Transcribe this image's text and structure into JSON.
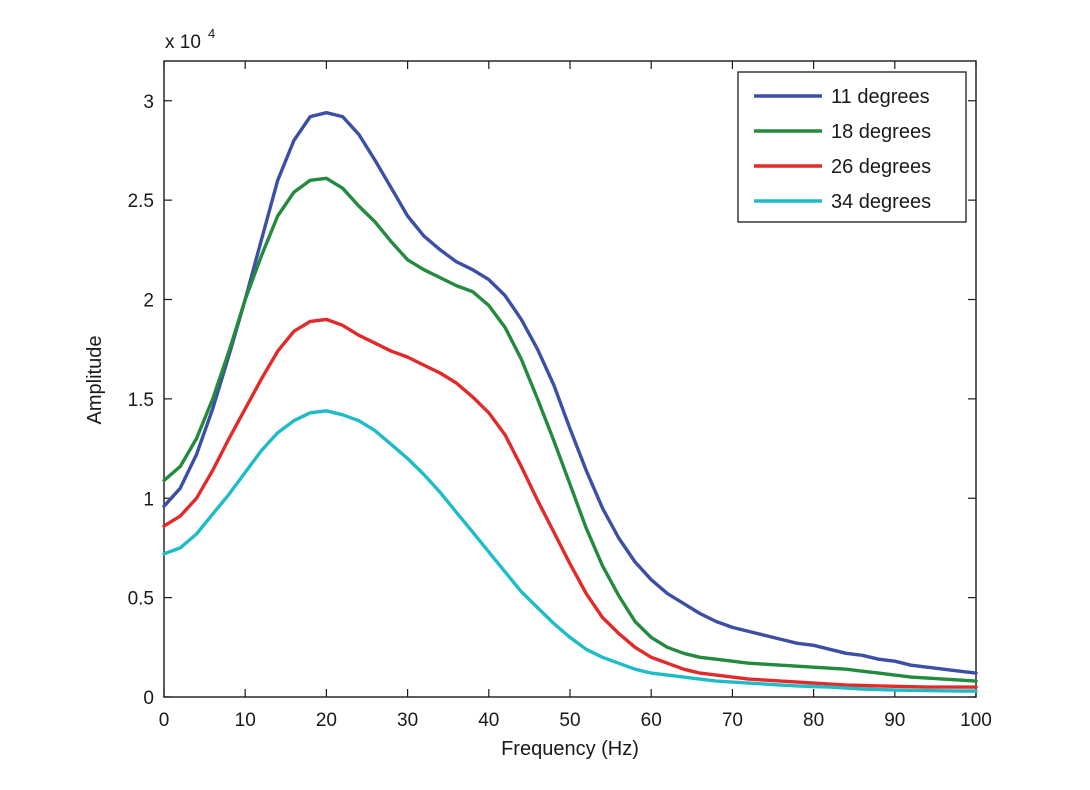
{
  "chart_data": {
    "type": "line",
    "title": "",
    "xlabel": "Frequency (Hz)",
    "ylabel": "Amplitude",
    "y_multiplier_label": "x 10",
    "y_multiplier_exponent": "4",
    "xlim": [
      0,
      100
    ],
    "ylim": [
      0,
      3.2
    ],
    "xticks": [
      0,
      10,
      20,
      30,
      40,
      50,
      60,
      70,
      80,
      90,
      100
    ],
    "yticks": [
      0,
      0.5,
      1,
      1.5,
      2,
      2.5,
      3
    ],
    "xtick_labels": [
      "0",
      "10",
      "20",
      "30",
      "40",
      "50",
      "60",
      "70",
      "80",
      "90",
      "100"
    ],
    "ytick_labels": [
      "0",
      "0.5",
      "1",
      "1.5",
      "2",
      "2.5",
      "3"
    ],
    "grid": false,
    "legend_position": "top-right",
    "x": [
      0,
      2,
      4,
      6,
      8,
      10,
      12,
      14,
      16,
      18,
      20,
      22,
      24,
      26,
      28,
      30,
      32,
      34,
      36,
      38,
      40,
      42,
      44,
      46,
      48,
      50,
      52,
      54,
      56,
      58,
      60,
      62,
      64,
      66,
      68,
      70,
      72,
      74,
      76,
      78,
      80,
      82,
      84,
      86,
      88,
      90,
      92,
      94,
      96,
      98,
      100
    ],
    "series": [
      {
        "name": "11 degrees",
        "color": "#3b4fa6",
        "values": [
          0.96,
          1.05,
          1.22,
          1.45,
          1.72,
          2.0,
          2.3,
          2.6,
          2.8,
          2.92,
          2.94,
          2.92,
          2.83,
          2.7,
          2.56,
          2.42,
          2.32,
          2.25,
          2.19,
          2.15,
          2.1,
          2.02,
          1.9,
          1.75,
          1.57,
          1.35,
          1.14,
          0.95,
          0.8,
          0.68,
          0.59,
          0.52,
          0.47,
          0.42,
          0.38,
          0.35,
          0.33,
          0.31,
          0.29,
          0.27,
          0.26,
          0.24,
          0.22,
          0.21,
          0.19,
          0.18,
          0.16,
          0.15,
          0.14,
          0.13,
          0.12
        ]
      },
      {
        "name": "18 degrees",
        "color": "#238a3e",
        "values": [
          1.09,
          1.16,
          1.3,
          1.5,
          1.74,
          2.0,
          2.22,
          2.42,
          2.54,
          2.6,
          2.61,
          2.56,
          2.47,
          2.39,
          2.29,
          2.2,
          2.15,
          2.11,
          2.07,
          2.04,
          1.97,
          1.86,
          1.7,
          1.5,
          1.29,
          1.07,
          0.85,
          0.66,
          0.51,
          0.38,
          0.3,
          0.25,
          0.22,
          0.2,
          0.19,
          0.18,
          0.17,
          0.165,
          0.16,
          0.155,
          0.15,
          0.145,
          0.14,
          0.13,
          0.12,
          0.11,
          0.1,
          0.095,
          0.09,
          0.085,
          0.08
        ]
      },
      {
        "name": "26 degrees",
        "color": "#e32a2a",
        "values": [
          0.86,
          0.91,
          1.0,
          1.14,
          1.3,
          1.45,
          1.6,
          1.74,
          1.84,
          1.89,
          1.9,
          1.87,
          1.82,
          1.78,
          1.74,
          1.71,
          1.67,
          1.63,
          1.58,
          1.51,
          1.43,
          1.32,
          1.16,
          0.99,
          0.83,
          0.67,
          0.52,
          0.4,
          0.32,
          0.25,
          0.2,
          0.17,
          0.14,
          0.12,
          0.11,
          0.1,
          0.09,
          0.085,
          0.08,
          0.075,
          0.07,
          0.065,
          0.06,
          0.058,
          0.056,
          0.054,
          0.052,
          0.05,
          0.05,
          0.05,
          0.05
        ]
      },
      {
        "name": "34 degrees",
        "color": "#1fbcc8",
        "values": [
          0.72,
          0.75,
          0.82,
          0.92,
          1.02,
          1.13,
          1.24,
          1.33,
          1.39,
          1.43,
          1.44,
          1.42,
          1.39,
          1.34,
          1.27,
          1.2,
          1.12,
          1.03,
          0.93,
          0.83,
          0.73,
          0.63,
          0.53,
          0.45,
          0.37,
          0.3,
          0.24,
          0.2,
          0.17,
          0.14,
          0.12,
          0.11,
          0.1,
          0.09,
          0.08,
          0.075,
          0.07,
          0.065,
          0.06,
          0.056,
          0.053,
          0.05,
          0.045,
          0.04,
          0.037,
          0.035,
          0.033,
          0.032,
          0.031,
          0.03,
          0.03
        ]
      }
    ]
  }
}
